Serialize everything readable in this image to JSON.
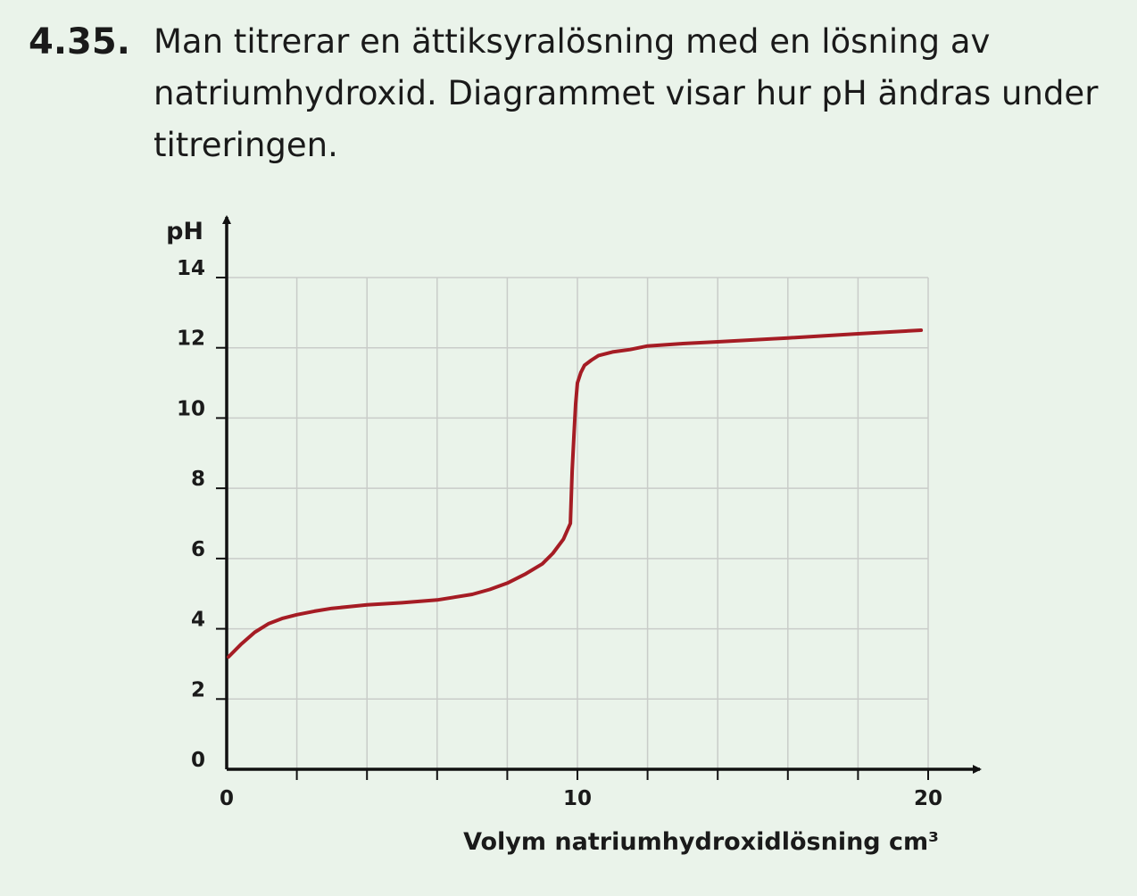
{
  "problem": {
    "number": "4.35.",
    "text": "Man titrerar en ättiksyralösning med en lösning av natriumhydroxid. Diagrammet visar hur pH ändras under titreringen."
  },
  "chart_data": {
    "type": "line",
    "title": "",
    "xlabel": "Volym natriumhydroxidlösning cm³",
    "ylabel": "pH",
    "xlim": [
      0,
      20
    ],
    "ylim": [
      0,
      14
    ],
    "x_ticks": [
      0,
      10,
      20
    ],
    "y_ticks": [
      0,
      2,
      4,
      6,
      8,
      10,
      12,
      14
    ],
    "grid": true,
    "grid_x_step": 2,
    "grid_y_step": 2,
    "colors": {
      "curve": "#a51c24",
      "grid": "#c9ccc9",
      "axis": "#111111"
    },
    "series": [
      {
        "x": [
          0.05,
          0.4,
          0.8,
          1.2,
          1.6,
          2.0,
          2.5,
          3.0,
          3.5,
          4.0,
          5.0,
          6.0,
          7.0,
          7.5,
          8.0,
          8.5,
          9.0,
          9.3,
          9.6,
          9.8,
          9.85,
          9.9,
          9.95,
          10.0,
          10.1,
          10.2,
          10.4,
          10.6,
          11.0,
          11.5,
          12.0,
          13.0,
          14.0,
          16.0,
          18.0,
          19.8
        ],
        "y": [
          3.2,
          3.55,
          3.9,
          4.15,
          4.3,
          4.4,
          4.5,
          4.58,
          4.63,
          4.68,
          4.74,
          4.82,
          4.98,
          5.12,
          5.3,
          5.55,
          5.85,
          6.15,
          6.55,
          7.0,
          8.5,
          9.5,
          10.4,
          11.0,
          11.3,
          11.5,
          11.65,
          11.78,
          11.88,
          11.95,
          12.05,
          12.12,
          12.17,
          12.28,
          12.4,
          12.5
        ]
      }
    ]
  }
}
